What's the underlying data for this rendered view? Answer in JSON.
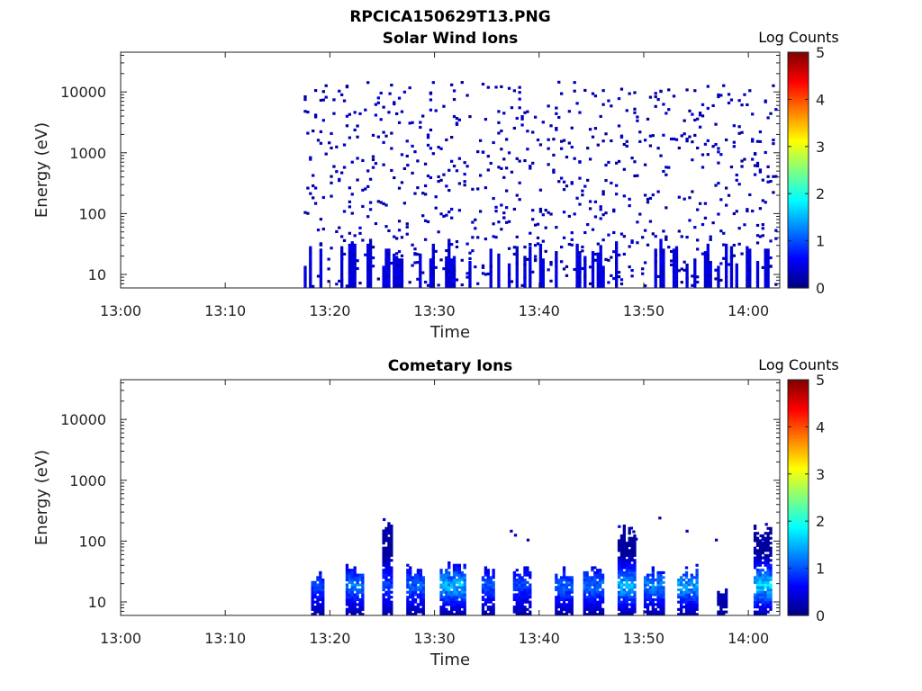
{
  "figure_title": "RPCICA150629T13.PNG",
  "colormap": [
    "#00007f",
    "#0000ff",
    "#0080ff",
    "#00ffff",
    "#80ff80",
    "#ffff00",
    "#ff8000",
    "#ff0000",
    "#7f0000"
  ],
  "chart_data": [
    {
      "type": "heatmap",
      "title": "Solar Wind Ions",
      "xlabel": "Time",
      "ylabel": "Energy (eV)",
      "x_ticks": [
        "13:00",
        "13:10",
        "13:20",
        "13:30",
        "13:40",
        "13:50",
        "14:00"
      ],
      "x_tick_minutes": [
        0,
        10,
        20,
        30,
        40,
        50,
        60
      ],
      "xlim_minutes": [
        0,
        63
      ],
      "y_scale": "log",
      "ylim": [
        6,
        45000
      ],
      "y_ticks": [
        "10",
        "100",
        "1000",
        "10000"
      ],
      "y_tick_values": [
        10,
        100,
        1000,
        10000
      ],
      "colorbar": {
        "label": "Log Counts",
        "range": [
          0,
          5
        ],
        "ticks": [
          "0",
          "1",
          "2",
          "3",
          "4",
          "5"
        ]
      },
      "data_start_minute": 17.5,
      "data_end_minute": 62.5,
      "cells": [
        [
          17.5,
          100,
          0.3
        ],
        [
          18,
          800,
          0.3
        ],
        [
          18.5,
          4000,
          0.3
        ],
        [
          19,
          7000,
          0.3
        ],
        [
          19.8,
          1400,
          0.2
        ],
        [
          21,
          450,
          0.3
        ],
        [
          22,
          200,
          0.3
        ],
        [
          22.5,
          12,
          0.5
        ],
        [
          23,
          35,
          0.4
        ],
        [
          24,
          18,
          0.4
        ],
        [
          25.6,
          9000,
          0.3
        ],
        [
          26,
          40,
          0.4
        ],
        [
          26.5,
          3000,
          0.2
        ],
        [
          27.3,
          600,
          0.2
        ],
        [
          28,
          15,
          0.4
        ],
        [
          29,
          200,
          0.2
        ],
        [
          29.5,
          9000,
          0.2
        ],
        [
          31,
          14,
          0.5
        ],
        [
          31.5,
          30,
          0.4
        ],
        [
          32,
          2800,
          0.2
        ],
        [
          33,
          10,
          0.5
        ],
        [
          34,
          1000,
          0.2
        ],
        [
          35,
          500,
          0.2
        ],
        [
          36,
          3000,
          0.2
        ],
        [
          37,
          11000,
          0.2
        ],
        [
          38,
          700,
          0.2
        ],
        [
          39,
          30,
          0.2
        ],
        [
          40,
          1300,
          0.2
        ],
        [
          41,
          14,
          0.4
        ],
        [
          42,
          9000,
          0.2
        ],
        [
          43,
          300,
          0.2
        ],
        [
          44,
          12,
          0.4
        ],
        [
          45,
          9000,
          0.2
        ],
        [
          46,
          1500,
          0.2
        ],
        [
          47.5,
          20,
          0.4
        ],
        [
          48.5,
          9000,
          0.3
        ],
        [
          49,
          400,
          0.2
        ],
        [
          50,
          15,
          0.4
        ],
        [
          51,
          8000,
          0.2
        ],
        [
          52,
          120,
          0.2
        ],
        [
          53,
          12,
          0.5
        ],
        [
          54,
          1500,
          0.2
        ],
        [
          55,
          25,
          0.3
        ],
        [
          56,
          900,
          0.2
        ],
        [
          57,
          8000,
          0.2
        ],
        [
          58,
          14,
          0.4
        ],
        [
          59,
          2000,
          0.2
        ],
        [
          60,
          11,
          0.5
        ],
        [
          61,
          500,
          0.2
        ],
        [
          62,
          18,
          0.5
        ]
      ]
    },
    {
      "type": "heatmap",
      "title": "Cometary Ions",
      "xlabel": "Time",
      "ylabel": "Energy (eV)",
      "x_ticks": [
        "13:00",
        "13:10",
        "13:20",
        "13:30",
        "13:40",
        "13:50",
        "14:00"
      ],
      "x_tick_minutes": [
        0,
        10,
        20,
        30,
        40,
        50,
        60
      ],
      "xlim_minutes": [
        0,
        63
      ],
      "y_scale": "log",
      "ylim": [
        6,
        45000
      ],
      "y_ticks": [
        "10",
        "100",
        "1000",
        "10000"
      ],
      "y_tick_values": [
        10,
        100,
        1000,
        10000
      ],
      "colorbar": {
        "label": "Log Counts",
        "range": [
          0,
          5
        ],
        "ticks": [
          "0",
          "1",
          "2",
          "3",
          "4",
          "5"
        ]
      },
      "data_start_minute": 18,
      "data_end_minute": 62.5,
      "bursts": [
        {
          "t0": 18.2,
          "t1": 19.4,
          "emax": 32,
          "peak": 1.0
        },
        {
          "t0": 21.5,
          "t1": 23.2,
          "emax": 42,
          "peak": 1.3
        },
        {
          "t0": 25.0,
          "t1": 25.8,
          "emax": 300,
          "peak": 1.0
        },
        {
          "t0": 27.3,
          "t1": 28.8,
          "emax": 45,
          "peak": 1.2
        },
        {
          "t0": 30.5,
          "t1": 32.8,
          "emax": 45,
          "peak": 1.7
        },
        {
          "t0": 34.5,
          "t1": 35.7,
          "emax": 40,
          "peak": 1.1
        },
        {
          "t0": 37.5,
          "t1": 39.2,
          "emax": 45,
          "peak": 1.0
        },
        {
          "t0": 41.5,
          "t1": 43.0,
          "emax": 40,
          "peak": 1.2
        },
        {
          "t0": 44.2,
          "t1": 46.0,
          "emax": 40,
          "peak": 1.3
        },
        {
          "t0": 47.5,
          "t1": 49.2,
          "emax": 200,
          "peak": 1.7
        },
        {
          "t0": 50.0,
          "t1": 51.8,
          "emax": 40,
          "peak": 1.4
        },
        {
          "t0": 53.2,
          "t1": 55.0,
          "emax": 40,
          "peak": 1.6
        },
        {
          "t0": 57.0,
          "t1": 57.8,
          "emax": 16,
          "peak": 0.2
        },
        {
          "t0": 60.5,
          "t1": 62.0,
          "emax": 200,
          "peak": 1.9
        }
      ]
    }
  ]
}
